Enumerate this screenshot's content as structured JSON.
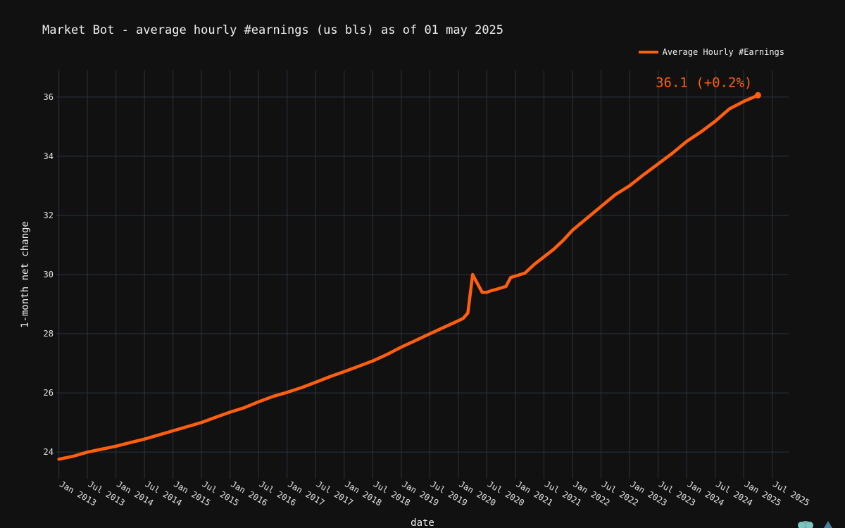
{
  "title": "Market Bot - average hourly #earnings (us bls) as of 01 may 2025",
  "colors": {
    "background": "#111111",
    "line": "#ff5f0f",
    "grid": "#2a3340",
    "text": "#e8e8e8"
  },
  "chart_data": {
    "type": "line",
    "title": "Market Bot - average hourly #earnings (us bls) as of 01 may 2025",
    "xlabel": "date",
    "ylabel": "1-month net change",
    "ylim": [
      23.1,
      36.9
    ],
    "xlim": [
      "2012-12-15",
      "2025-10-15"
    ],
    "yticks": [
      24,
      26,
      28,
      30,
      32,
      34,
      36
    ],
    "xticks": [
      "Jan 2013",
      "Jul 2013",
      "Jan 2014",
      "Jul 2014",
      "Jan 2015",
      "Jul 2015",
      "Jan 2016",
      "Jul 2016",
      "Jan 2017",
      "Jul 2017",
      "Jan 2018",
      "Jul 2018",
      "Jan 2019",
      "Jul 2019",
      "Jan 2020",
      "Jul 2020",
      "Jan 2021",
      "Jul 2021",
      "Jan 2022",
      "Jul 2022",
      "Jan 2023",
      "Jul 2023",
      "Jan 2024",
      "Jul 2024",
      "Jan 2025",
      "Jul 2025"
    ],
    "grid": true,
    "legend_position": "top-right",
    "last_value_label": "36.1 (+0.2%)",
    "series": [
      {
        "name": "Average Hourly #Earnings",
        "color": "#ff5f0f",
        "points": [
          [
            "2013-01",
            23.76
          ],
          [
            "2013-04",
            23.86
          ],
          [
            "2013-07",
            24.0
          ],
          [
            "2013-10",
            24.1
          ],
          [
            "2014-01",
            24.2
          ],
          [
            "2014-04",
            24.32
          ],
          [
            "2014-07",
            24.44
          ],
          [
            "2014-10",
            24.58
          ],
          [
            "2015-01",
            24.72
          ],
          [
            "2015-04",
            24.86
          ],
          [
            "2015-07",
            25.0
          ],
          [
            "2015-10",
            25.18
          ],
          [
            "2016-01",
            25.35
          ],
          [
            "2016-04",
            25.5
          ],
          [
            "2016-07",
            25.7
          ],
          [
            "2016-10",
            25.88
          ],
          [
            "2017-01",
            26.02
          ],
          [
            "2017-04",
            26.18
          ],
          [
            "2017-07",
            26.36
          ],
          [
            "2017-10",
            26.55
          ],
          [
            "2018-01",
            26.72
          ],
          [
            "2018-04",
            26.9
          ],
          [
            "2018-07",
            27.08
          ],
          [
            "2018-10",
            27.3
          ],
          [
            "2019-01",
            27.55
          ],
          [
            "2019-04",
            27.77
          ],
          [
            "2019-07",
            28.0
          ],
          [
            "2019-10",
            28.22
          ],
          [
            "2020-01",
            28.44
          ],
          [
            "2020-02",
            28.52
          ],
          [
            "2020-03",
            28.7
          ],
          [
            "2020-04",
            30.0
          ],
          [
            "2020-05",
            29.7
          ],
          [
            "2020-06",
            29.4
          ],
          [
            "2020-07",
            29.4
          ],
          [
            "2020-08",
            29.46
          ],
          [
            "2020-09",
            29.5
          ],
          [
            "2020-10",
            29.55
          ],
          [
            "2020-11",
            29.6
          ],
          [
            "2020-12",
            29.9
          ],
          [
            "2021-01",
            29.95
          ],
          [
            "2021-03",
            30.05
          ],
          [
            "2021-05",
            30.35
          ],
          [
            "2021-07",
            30.6
          ],
          [
            "2021-09",
            30.85
          ],
          [
            "2021-11",
            31.15
          ],
          [
            "2022-01",
            31.5
          ],
          [
            "2022-04",
            31.9
          ],
          [
            "2022-07",
            32.3
          ],
          [
            "2022-10",
            32.7
          ],
          [
            "2023-01",
            33.0
          ],
          [
            "2023-04",
            33.38
          ],
          [
            "2023-07",
            33.74
          ],
          [
            "2023-10",
            34.1
          ],
          [
            "2024-01",
            34.5
          ],
          [
            "2024-04",
            34.82
          ],
          [
            "2024-07",
            35.18
          ],
          [
            "2024-10",
            35.6
          ],
          [
            "2025-01",
            35.85
          ],
          [
            "2025-04",
            36.06
          ]
        ]
      }
    ]
  }
}
